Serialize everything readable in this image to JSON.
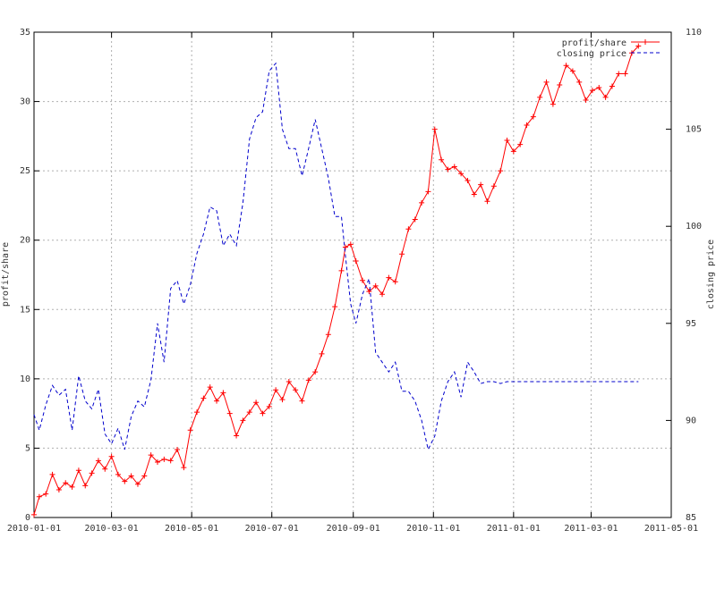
{
  "chart_data": {
    "type": "line",
    "title": "",
    "xlabel": "",
    "ylabel": "profit/share",
    "y2label": "closing price",
    "xlim": [
      "2010-01-01",
      "2011-05-01"
    ],
    "ylim": [
      0,
      35
    ],
    "y2lim": [
      85,
      110
    ],
    "x_ticks": [
      "2010-01-01",
      "2010-03-01",
      "2010-05-01",
      "2010-07-01",
      "2010-09-01",
      "2010-11-01",
      "2011-01-01",
      "2011-03-01",
      "2011-05-01"
    ],
    "y_ticks": [
      "0",
      "5",
      "10",
      "15",
      "20",
      "25",
      "30",
      "35"
    ],
    "y2_ticks": [
      "85",
      "90",
      "95",
      "100",
      "105",
      "110"
    ],
    "grid": true,
    "legend_position": "top-right",
    "series": [
      {
        "name": "profit/share",
        "axis": "left",
        "color": "#ff0000",
        "style": "solid-with-plus-markers",
        "x": [
          "2010-01-01",
          "2010-01-05",
          "2010-01-10",
          "2010-01-15",
          "2010-01-20",
          "2010-01-25",
          "2010-01-30",
          "2010-02-04",
          "2010-02-09",
          "2010-02-14",
          "2010-02-19",
          "2010-02-24",
          "2010-03-01",
          "2010-03-06",
          "2010-03-11",
          "2010-03-16",
          "2010-03-21",
          "2010-03-26",
          "2010-03-31",
          "2010-04-05",
          "2010-04-10",
          "2010-04-15",
          "2010-04-20",
          "2010-04-25",
          "2010-04-30",
          "2010-05-05",
          "2010-05-10",
          "2010-05-15",
          "2010-05-20",
          "2010-05-25",
          "2010-05-30",
          "2010-06-04",
          "2010-06-09",
          "2010-06-14",
          "2010-06-19",
          "2010-06-24",
          "2010-06-29",
          "2010-07-04",
          "2010-07-09",
          "2010-07-14",
          "2010-07-19",
          "2010-07-24",
          "2010-07-29",
          "2010-08-03",
          "2010-08-08",
          "2010-08-13",
          "2010-08-18",
          "2010-08-23",
          "2010-08-26",
          "2010-08-30",
          "2010-09-03",
          "2010-09-08",
          "2010-09-13",
          "2010-09-18",
          "2010-09-23",
          "2010-09-28",
          "2010-10-03",
          "2010-10-08",
          "2010-10-13",
          "2010-10-18",
          "2010-10-23",
          "2010-10-28",
          "2010-11-02",
          "2010-11-07",
          "2010-11-12",
          "2010-11-17",
          "2010-11-22",
          "2010-11-27",
          "2010-12-02",
          "2010-12-07",
          "2010-12-12",
          "2010-12-17",
          "2010-12-22",
          "2010-12-27",
          "2011-01-01",
          "2011-01-06",
          "2011-01-11",
          "2011-01-16",
          "2011-01-21",
          "2011-01-26",
          "2011-01-31",
          "2011-02-05",
          "2011-02-10",
          "2011-02-15",
          "2011-02-20",
          "2011-02-25",
          "2011-03-02",
          "2011-03-07",
          "2011-03-12",
          "2011-03-17",
          "2011-03-22",
          "2011-03-27",
          "2011-04-01",
          "2011-04-06"
        ],
        "values": [
          0.2,
          1.5,
          1.7,
          3.1,
          2.0,
          2.5,
          2.2,
          3.4,
          2.3,
          3.2,
          4.1,
          3.5,
          4.4,
          3.1,
          2.6,
          3.0,
          2.4,
          3.0,
          4.5,
          4.0,
          4.2,
          4.1,
          4.9,
          3.6,
          6.3,
          7.6,
          8.6,
          9.4,
          8.4,
          9.0,
          7.5,
          5.9,
          7.0,
          7.6,
          8.3,
          7.5,
          8.0,
          9.2,
          8.5,
          9.8,
          9.2,
          8.4,
          9.9,
          10.5,
          11.8,
          13.2,
          15.2,
          17.8,
          19.5,
          19.7,
          18.5,
          17.1,
          16.3,
          16.7,
          16.1,
          17.3,
          17.0,
          19.0,
          20.8,
          21.5,
          22.7,
          23.5,
          28.0,
          25.8,
          25.1,
          25.3,
          24.8,
          24.3,
          23.3,
          24.0,
          22.8,
          23.9,
          25.0,
          27.2,
          26.4,
          26.9,
          28.3,
          28.9,
          30.3,
          31.4,
          29.8,
          31.2,
          32.6,
          32.2,
          31.4,
          30.1,
          30.8,
          31.0,
          30.3,
          31.1,
          32.0,
          32.0,
          33.5,
          34.0
        ]
      },
      {
        "name": "closing price",
        "axis": "right",
        "color": "#0000cc",
        "style": "dashed",
        "x": [
          "2010-01-01",
          "2010-01-05",
          "2010-01-10",
          "2010-01-15",
          "2010-01-20",
          "2010-01-25",
          "2010-01-30",
          "2010-02-04",
          "2010-02-09",
          "2010-02-14",
          "2010-02-19",
          "2010-02-24",
          "2010-03-01",
          "2010-03-06",
          "2010-03-11",
          "2010-03-16",
          "2010-03-21",
          "2010-03-26",
          "2010-03-31",
          "2010-04-05",
          "2010-04-10",
          "2010-04-15",
          "2010-04-20",
          "2010-04-25",
          "2010-04-30",
          "2010-05-05",
          "2010-05-10",
          "2010-05-15",
          "2010-05-20",
          "2010-05-25",
          "2010-05-30",
          "2010-06-04",
          "2010-06-09",
          "2010-06-14",
          "2010-06-19",
          "2010-06-24",
          "2010-06-29",
          "2010-07-04",
          "2010-07-09",
          "2010-07-14",
          "2010-07-19",
          "2010-07-24",
          "2010-07-29",
          "2010-08-03",
          "2010-08-08",
          "2010-08-13",
          "2010-08-18",
          "2010-08-23",
          "2010-08-26",
          "2010-08-30",
          "2010-09-03",
          "2010-09-08",
          "2010-09-13",
          "2010-09-18",
          "2010-09-23",
          "2010-09-28",
          "2010-10-03",
          "2010-10-08",
          "2010-10-13",
          "2010-10-18",
          "2010-10-23",
          "2010-10-28",
          "2010-11-02",
          "2010-11-07",
          "2010-11-12",
          "2010-11-17",
          "2010-11-22",
          "2010-11-27",
          "2010-12-02",
          "2010-12-07",
          "2010-12-12",
          "2010-12-17",
          "2010-12-22",
          "2010-12-27",
          "2011-01-01",
          "2011-01-06",
          "2011-01-11",
          "2011-01-16",
          "2011-01-21",
          "2011-01-26",
          "2011-01-31",
          "2011-02-05",
          "2011-02-10",
          "2011-02-15",
          "2011-02-20",
          "2011-02-25",
          "2011-03-02",
          "2011-03-07",
          "2011-03-12",
          "2011-03-17",
          "2011-03-22",
          "2011-03-27",
          "2011-04-01",
          "2011-04-06"
        ],
        "values": [
          90.3,
          89.5,
          90.8,
          91.8,
          91.3,
          91.6,
          89.5,
          92.3,
          91.0,
          90.6,
          91.6,
          89.3,
          88.8,
          89.6,
          88.5,
          90.2,
          91.0,
          90.7,
          92.1,
          95.0,
          93.0,
          96.8,
          97.2,
          96.0,
          97.0,
          98.6,
          99.6,
          101.0,
          100.8,
          99.0,
          99.6,
          99.0,
          101.2,
          104.5,
          105.6,
          105.9,
          108.0,
          108.4,
          105.0,
          104.0,
          104.0,
          102.6,
          104.0,
          105.5,
          104.0,
          102.5,
          100.5,
          100.5,
          98.5,
          96.0,
          95.0,
          96.5,
          97.3,
          93.5,
          93.0,
          92.5,
          93.0,
          91.5,
          91.5,
          91.0,
          90.0,
          88.5,
          89.2,
          91.0,
          92.0,
          92.5,
          91.2,
          93.0,
          92.5,
          91.9,
          92.0,
          92.0,
          91.9,
          92.0,
          92.0,
          92.0,
          92.0,
          92.0,
          92.0,
          92.0,
          92.0,
          92.0,
          92.0,
          92.0,
          92.0,
          92.0,
          92.0,
          92.0,
          92.0,
          92.0,
          92.0,
          92.0,
          92.0,
          92.0
        ]
      }
    ]
  }
}
